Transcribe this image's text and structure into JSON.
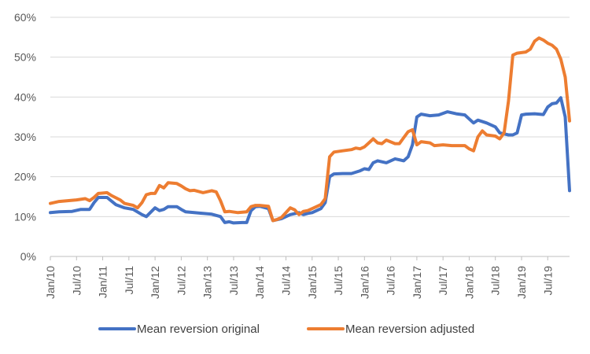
{
  "chart_data": {
    "type": "line",
    "title": "",
    "xlabel": "",
    "ylabel": "",
    "ylim": [
      0,
      0.6
    ],
    "y_ticks": [
      "0%",
      "10%",
      "20%",
      "30%",
      "40%",
      "50%",
      "60%"
    ],
    "y_tick_values": [
      0,
      0.1,
      0.2,
      0.3,
      0.4,
      0.5,
      0.6
    ],
    "x_ticks": [
      "Jan/10",
      "Jul/10",
      "Jan/11",
      "Jul/11",
      "Jan/12",
      "Jul/12",
      "Jan/13",
      "Jul/13",
      "Jan/14",
      "Jul/14",
      "Jan/15",
      "Jul/15",
      "Jan/16",
      "Jul/16",
      "Jan/17",
      "Jul/17",
      "Jan/18",
      "Jul/18",
      "Jan/19",
      "Jul/19"
    ],
    "x_start": "2010-01",
    "x_end": "2019-09",
    "grid": "horizontal",
    "legend_position": "bottom",
    "colors": {
      "series_original": "#4472C4",
      "series_adjusted": "#ED7D31",
      "grid": "#d9d9d9",
      "axis": "#bfbfbf"
    },
    "series": [
      {
        "name": "Mean reversion original",
        "points": [
          [
            "2010-01",
            0.11
          ],
          [
            "2010-03",
            0.112
          ],
          [
            "2010-06",
            0.113
          ],
          [
            "2010-08",
            0.118
          ],
          [
            "2010-10",
            0.118
          ],
          [
            "2010-11",
            0.135
          ],
          [
            "2010-12",
            0.148
          ],
          [
            "2011-02",
            0.148
          ],
          [
            "2011-04",
            0.13
          ],
          [
            "2011-06",
            0.122
          ],
          [
            "2011-08",
            0.118
          ],
          [
            "2011-10",
            0.105
          ],
          [
            "2011-11",
            0.1
          ],
          [
            "2012-01",
            0.122
          ],
          [
            "2012-02",
            0.115
          ],
          [
            "2012-03",
            0.118
          ],
          [
            "2012-04",
            0.125
          ],
          [
            "2012-06",
            0.125
          ],
          [
            "2012-07",
            0.118
          ],
          [
            "2012-08",
            0.112
          ],
          [
            "2012-10",
            0.11
          ],
          [
            "2012-12",
            0.108
          ],
          [
            "2013-02",
            0.106
          ],
          [
            "2013-04",
            0.1
          ],
          [
            "2013-05",
            0.085
          ],
          [
            "2013-06",
            0.087
          ],
          [
            "2013-07",
            0.084
          ],
          [
            "2013-09",
            0.085
          ],
          [
            "2013-10",
            0.085
          ],
          [
            "2013-11",
            0.115
          ],
          [
            "2013-12",
            0.125
          ],
          [
            "2014-01",
            0.126
          ],
          [
            "2014-03",
            0.12
          ],
          [
            "2014-04",
            0.09
          ],
          [
            "2014-06",
            0.095
          ],
          [
            "2014-08",
            0.105
          ],
          [
            "2014-10",
            0.11
          ],
          [
            "2014-11",
            0.105
          ],
          [
            "2014-12",
            0.108
          ],
          [
            "2015-01",
            0.11
          ],
          [
            "2015-03",
            0.12
          ],
          [
            "2015-04",
            0.135
          ],
          [
            "2015-05",
            0.2
          ],
          [
            "2015-06",
            0.207
          ],
          [
            "2015-08",
            0.208
          ],
          [
            "2015-10",
            0.208
          ],
          [
            "2015-12",
            0.215
          ],
          [
            "2016-01",
            0.22
          ],
          [
            "2016-02",
            0.218
          ],
          [
            "2016-03",
            0.235
          ],
          [
            "2016-04",
            0.24
          ],
          [
            "2016-06",
            0.235
          ],
          [
            "2016-08",
            0.245
          ],
          [
            "2016-10",
            0.24
          ],
          [
            "2016-11",
            0.25
          ],
          [
            "2016-12",
            0.28
          ],
          [
            "2017-01",
            0.35
          ],
          [
            "2017-02",
            0.357
          ],
          [
            "2017-04",
            0.353
          ],
          [
            "2017-06",
            0.355
          ],
          [
            "2017-08",
            0.363
          ],
          [
            "2017-10",
            0.358
          ],
          [
            "2017-12",
            0.355
          ],
          [
            "2018-01",
            0.345
          ],
          [
            "2018-02",
            0.335
          ],
          [
            "2018-03",
            0.342
          ],
          [
            "2018-05",
            0.335
          ],
          [
            "2018-07",
            0.325
          ],
          [
            "2018-08",
            0.31
          ],
          [
            "2018-10",
            0.305
          ],
          [
            "2018-11",
            0.305
          ],
          [
            "2018-12",
            0.31
          ],
          [
            "2019-01",
            0.355
          ],
          [
            "2019-02",
            0.357
          ],
          [
            "2019-04",
            0.358
          ],
          [
            "2019-06",
            0.356
          ],
          [
            "2019-07",
            0.375
          ],
          [
            "2019-08",
            0.383
          ],
          [
            "2019-09",
            0.385
          ],
          [
            "2019-10",
            0.398
          ],
          [
            "2019-11",
            0.35
          ],
          [
            "2019-12",
            0.165
          ]
        ]
      },
      {
        "name": "Mean reversion adjusted",
        "points": [
          [
            "2010-01",
            0.133
          ],
          [
            "2010-03",
            0.138
          ],
          [
            "2010-05",
            0.14
          ],
          [
            "2010-07",
            0.142
          ],
          [
            "2010-09",
            0.145
          ],
          [
            "2010-10",
            0.14
          ],
          [
            "2010-11",
            0.148
          ],
          [
            "2010-12",
            0.158
          ],
          [
            "2011-02",
            0.16
          ],
          [
            "2011-03",
            0.153
          ],
          [
            "2011-05",
            0.142
          ],
          [
            "2011-06",
            0.133
          ],
          [
            "2011-08",
            0.128
          ],
          [
            "2011-09",
            0.122
          ],
          [
            "2011-10",
            0.135
          ],
          [
            "2011-11",
            0.155
          ],
          [
            "2011-12",
            0.158
          ],
          [
            "2012-01",
            0.158
          ],
          [
            "2012-02",
            0.178
          ],
          [
            "2012-03",
            0.172
          ],
          [
            "2012-04",
            0.185
          ],
          [
            "2012-06",
            0.183
          ],
          [
            "2012-07",
            0.177
          ],
          [
            "2012-08",
            0.17
          ],
          [
            "2012-09",
            0.165
          ],
          [
            "2012-10",
            0.166
          ],
          [
            "2012-12",
            0.16
          ],
          [
            "2013-02",
            0.165
          ],
          [
            "2013-03",
            0.162
          ],
          [
            "2013-04",
            0.14
          ],
          [
            "2013-05",
            0.112
          ],
          [
            "2013-06",
            0.113
          ],
          [
            "2013-08",
            0.11
          ],
          [
            "2013-10",
            0.112
          ],
          [
            "2013-11",
            0.125
          ],
          [
            "2013-12",
            0.128
          ],
          [
            "2014-01",
            0.128
          ],
          [
            "2014-03",
            0.126
          ],
          [
            "2014-04",
            0.09
          ],
          [
            "2014-05",
            0.093
          ],
          [
            "2014-06",
            0.098
          ],
          [
            "2014-07",
            0.11
          ],
          [
            "2014-08",
            0.122
          ],
          [
            "2014-09",
            0.117
          ],
          [
            "2014-10",
            0.105
          ],
          [
            "2014-11",
            0.113
          ],
          [
            "2014-12",
            0.115
          ],
          [
            "2015-01",
            0.12
          ],
          [
            "2015-02",
            0.125
          ],
          [
            "2015-03",
            0.13
          ],
          [
            "2015-04",
            0.145
          ],
          [
            "2015-05",
            0.25
          ],
          [
            "2015-06",
            0.262
          ],
          [
            "2015-08",
            0.265
          ],
          [
            "2015-10",
            0.268
          ],
          [
            "2015-11",
            0.272
          ],
          [
            "2015-12",
            0.27
          ],
          [
            "2016-01",
            0.275
          ],
          [
            "2016-02",
            0.285
          ],
          [
            "2016-03",
            0.295
          ],
          [
            "2016-04",
            0.285
          ],
          [
            "2016-05",
            0.283
          ],
          [
            "2016-06",
            0.292
          ],
          [
            "2016-08",
            0.283
          ],
          [
            "2016-09",
            0.283
          ],
          [
            "2016-10",
            0.298
          ],
          [
            "2016-11",
            0.313
          ],
          [
            "2016-12",
            0.318
          ],
          [
            "2017-01",
            0.28
          ],
          [
            "2017-02",
            0.288
          ],
          [
            "2017-04",
            0.285
          ],
          [
            "2017-05",
            0.278
          ],
          [
            "2017-07",
            0.28
          ],
          [
            "2017-09",
            0.278
          ],
          [
            "2017-11",
            0.278
          ],
          [
            "2017-12",
            0.278
          ],
          [
            "2018-01",
            0.27
          ],
          [
            "2018-02",
            0.265
          ],
          [
            "2018-03",
            0.3
          ],
          [
            "2018-04",
            0.315
          ],
          [
            "2018-05",
            0.305
          ],
          [
            "2018-07",
            0.302
          ],
          [
            "2018-08",
            0.295
          ],
          [
            "2018-09",
            0.31
          ],
          [
            "2018-10",
            0.39
          ],
          [
            "2018-11",
            0.505
          ],
          [
            "2018-12",
            0.51
          ],
          [
            "2019-02",
            0.513
          ],
          [
            "2019-03",
            0.52
          ],
          [
            "2019-04",
            0.54
          ],
          [
            "2019-05",
            0.548
          ],
          [
            "2019-06",
            0.543
          ],
          [
            "2019-07",
            0.535
          ],
          [
            "2019-08",
            0.53
          ],
          [
            "2019-09",
            0.52
          ],
          [
            "2019-10",
            0.495
          ],
          [
            "2019-11",
            0.45
          ],
          [
            "2019-12",
            0.34
          ]
        ]
      }
    ]
  }
}
